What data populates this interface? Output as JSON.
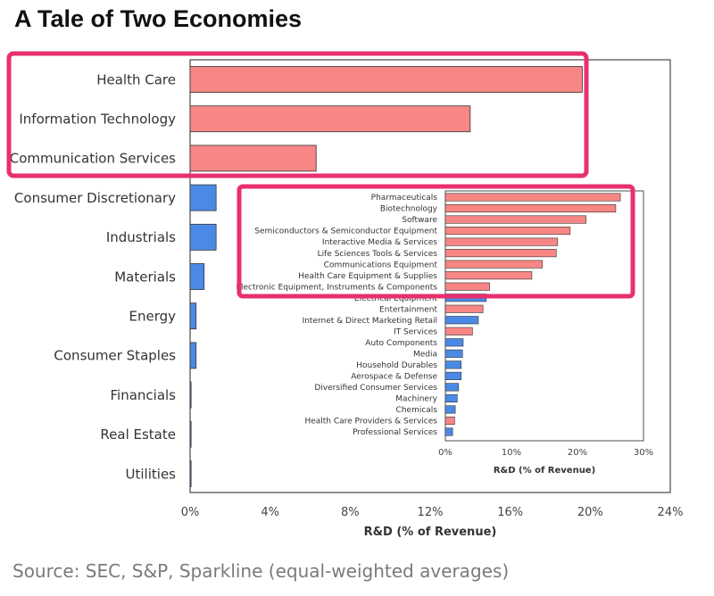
{
  "title": "A Tale of Two Economies",
  "source": "Source: SEC, S&P, Sparkline (equal-weighted averages)",
  "colors": {
    "tech": "#f78684",
    "non_tech": "#4a8ae6",
    "highlight": "#e8306e",
    "bar_stroke": "#333333"
  },
  "chart_data": [
    {
      "type": "bar",
      "orientation": "horizontal",
      "categories": [
        "Health Care",
        "Information Technology",
        "Communication Services",
        "Consumer Discretionary",
        "Industrials",
        "Materials",
        "Energy",
        "Consumer Staples",
        "Financials",
        "Real Estate",
        "Utilities"
      ],
      "values": [
        19.6,
        14.0,
        6.3,
        1.3,
        1.3,
        0.7,
        0.3,
        0.3,
        0.05,
        0.05,
        0.05
      ],
      "color_groups": [
        "tech",
        "tech",
        "tech",
        "non_tech",
        "non_tech",
        "non_tech",
        "non_tech",
        "non_tech",
        "non_tech",
        "non_tech",
        "non_tech"
      ],
      "highlighted": [
        "Health Care",
        "Information Technology",
        "Communication Services"
      ],
      "xlabel": "R&D (% of Revenue)",
      "ylabel": "",
      "xlim": [
        0,
        24
      ],
      "xticks": [
        "0%",
        "4%",
        "8%",
        "12%",
        "16%",
        "20%",
        "24%"
      ]
    },
    {
      "type": "bar",
      "orientation": "horizontal",
      "categories": [
        "Pharmaceuticals",
        "Biotechnology",
        "Software",
        "Semiconductors & Semiconductor Equipment",
        "Interactive Media & Services",
        "Life Sciences Tools & Services",
        "Communications Equipment",
        "Health Care Equipment & Supplies",
        "Electronic Equipment, Instruments & Components",
        "Electrical Equipment",
        "Entertainment",
        "Internet & Direct Marketing Retail",
        "IT Services",
        "Auto Components",
        "Media",
        "Household Durables",
        "Aerospace & Defense",
        "Diversified Consumer Services",
        "Machinery",
        "Chemicals",
        "Health Care Providers & Services",
        "Professional Services"
      ],
      "values": [
        26.5,
        25.8,
        21.3,
        18.9,
        17.0,
        16.8,
        14.7,
        13.1,
        6.7,
        6.2,
        5.7,
        5.0,
        4.1,
        2.7,
        2.6,
        2.4,
        2.4,
        2.0,
        1.8,
        1.5,
        1.4,
        1.1
      ],
      "color_groups": [
        "tech",
        "tech",
        "tech",
        "tech",
        "tech",
        "tech",
        "tech",
        "tech",
        "tech",
        "non_tech",
        "tech",
        "non_tech",
        "tech",
        "non_tech",
        "non_tech",
        "non_tech",
        "non_tech",
        "non_tech",
        "non_tech",
        "non_tech",
        "tech",
        "non_tech"
      ],
      "highlighted": [
        "Pharmaceuticals",
        "Biotechnology",
        "Software",
        "Semiconductors & Semiconductor Equipment",
        "Interactive Media & Services",
        "Life Sciences Tools & Services",
        "Communications Equipment",
        "Health Care Equipment & Supplies",
        "Electronic Equipment, Instruments & Components"
      ],
      "xlabel": "R&D (% of Revenue)",
      "ylabel": "",
      "xlim": [
        0,
        30
      ],
      "xticks": [
        "0%",
        "10%",
        "20%",
        "30%"
      ]
    }
  ]
}
